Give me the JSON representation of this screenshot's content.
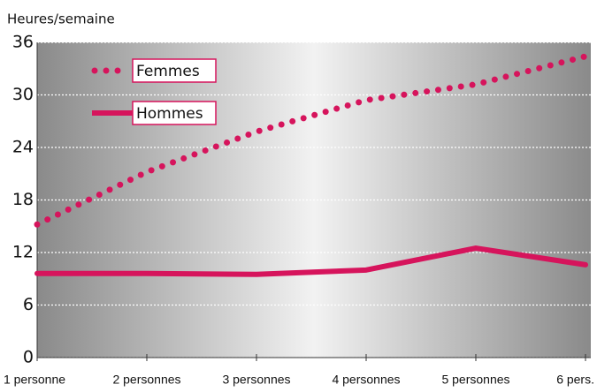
{
  "chart_data": {
    "type": "line",
    "y_label": "Heures/semaine",
    "categories": [
      "1 personne",
      "2 personnes",
      "3 personnes",
      "4 personnes",
      "5 personnes",
      "6 pers."
    ],
    "series": [
      {
        "name": "Femmes",
        "color": "#d6145c",
        "style": "dotted",
        "values": [
          15.2,
          21.2,
          25.8,
          29.4,
          31.2,
          34.4
        ]
      },
      {
        "name": "Hommes",
        "color": "#d6145c",
        "style": "solid",
        "values": [
          9.6,
          9.6,
          9.5,
          10.0,
          12.5,
          10.6
        ]
      }
    ],
    "ylim": [
      0,
      36
    ],
    "yticks": [
      0,
      6,
      12,
      18,
      24,
      30,
      36
    ],
    "grid": true,
    "legend": "upper left"
  }
}
